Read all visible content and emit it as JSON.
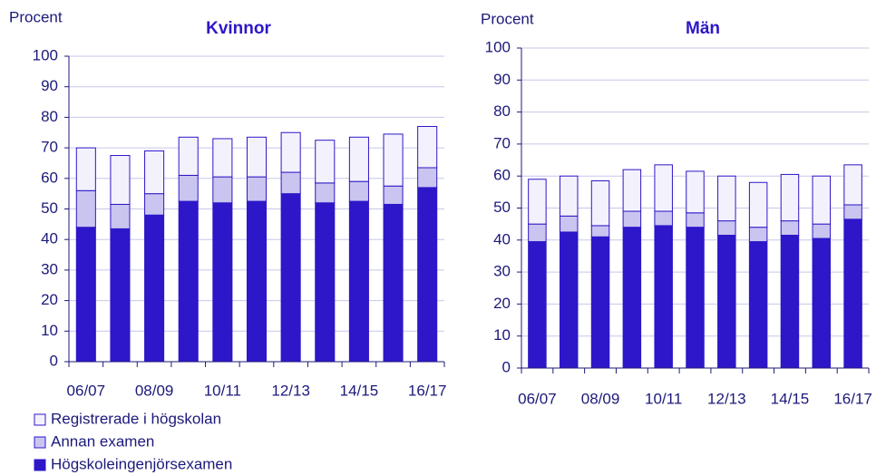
{
  "chart_data": [
    {
      "type": "stacked-bar",
      "title": "Kvinnor",
      "y_label": "Procent",
      "categories": [
        "06/07",
        null,
        "08/09",
        null,
        "10/11",
        null,
        "12/13",
        null,
        "14/15",
        null,
        "16/17"
      ],
      "ylim": [
        0,
        100
      ],
      "yticks": [
        0,
        10,
        20,
        30,
        40,
        50,
        60,
        70,
        80,
        90,
        100
      ],
      "grid": true,
      "series": [
        {
          "name": "Högskoleingenjörsexamen",
          "color": "#2d17c8",
          "values": [
            44,
            43.5,
            48,
            52.5,
            52,
            52.5,
            55,
            52,
            52.5,
            51.5,
            57
          ]
        },
        {
          "name": "Annan examen",
          "color": "#c9c5f0",
          "values": [
            12,
            8,
            7,
            8.5,
            8.5,
            8,
            7,
            6.5,
            6.5,
            6,
            6.5
          ]
        },
        {
          "name": "Registrerade i högskolan",
          "color": "#f3f2fc",
          "values": [
            14,
            16,
            14,
            12.5,
            12.5,
            13,
            13,
            14,
            14.5,
            17,
            13.5
          ]
        }
      ]
    },
    {
      "type": "stacked-bar",
      "title": "Män",
      "y_label": "Procent",
      "categories": [
        "06/07",
        null,
        "08/09",
        null,
        "10/11",
        null,
        "12/13",
        null,
        "14/15",
        null,
        "16/17"
      ],
      "ylim": [
        0,
        100
      ],
      "yticks": [
        0,
        10,
        20,
        30,
        40,
        50,
        60,
        70,
        80,
        90,
        100
      ],
      "grid": true,
      "series": [
        {
          "name": "Högskoleingenjörsexamen",
          "color": "#2d17c8",
          "values": [
            39.5,
            42.5,
            41,
            44,
            44.5,
            44,
            41.5,
            39.5,
            41.5,
            40.5,
            46.5
          ]
        },
        {
          "name": "Annan examen",
          "color": "#c9c5f0",
          "values": [
            5.5,
            5,
            3.5,
            5,
            4.5,
            4.5,
            4.5,
            4.5,
            4.5,
            4.5,
            4.5
          ]
        },
        {
          "name": "Registrerade i högskolan",
          "color": "#f3f2fc",
          "values": [
            14,
            12.5,
            14,
            13,
            14.5,
            13,
            14,
            14,
            14.5,
            15,
            12.5
          ]
        }
      ]
    }
  ]
}
